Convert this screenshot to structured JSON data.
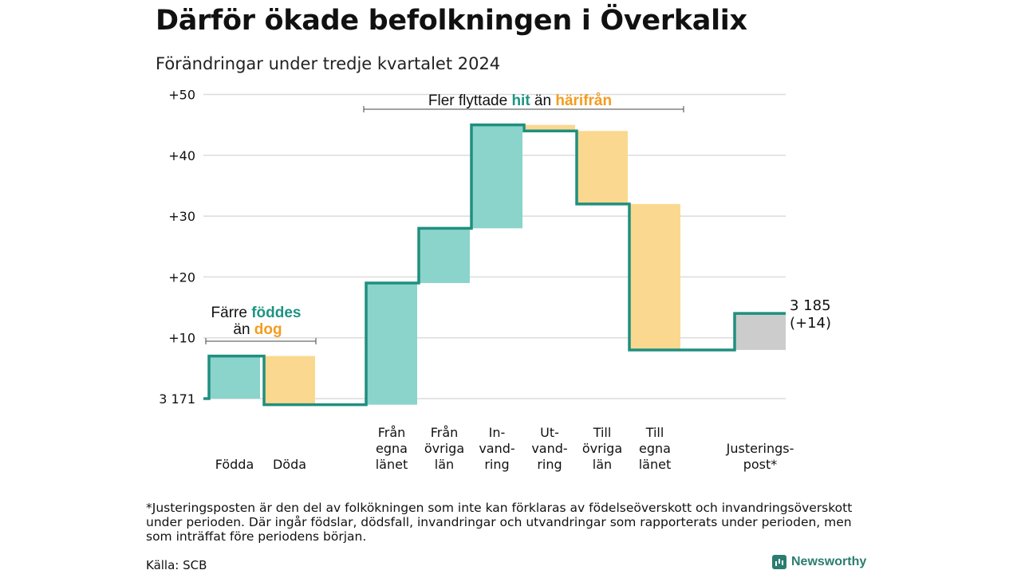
{
  "title": "Därför ökade befolkningen i Överkalix",
  "subtitle": "Förändringar under tredje kvartalet 2024",
  "footnote": "*Justeringsposten är den del av folkökningen som inte kan förklaras av födelseöverskott och invandringsöverskott under perioden. Där ingår födslar, dödsfall, invandringar och utvandringar som rapporterats under perioden, men som inträffat före periodens början.",
  "source": "Källa: SCB",
  "brand": "Newsworthy",
  "colors": {
    "positive": "#8ad4cb",
    "negative": "#fbd88f",
    "adjustment": "#cccccc",
    "line": "#1f8f7f",
    "teal_text": "#1e9482",
    "orange_text": "#f39c1f"
  },
  "annotations": {
    "births": {
      "prefix": "Färre",
      "highlight1": "föddes",
      "mid": "än",
      "highlight2": "dog"
    },
    "migration": {
      "prefix": "Fler flyttade",
      "highlight1": "hit",
      "mid": "än",
      "highlight2": "härifrån"
    },
    "end_label": [
      "3 185",
      "(+14)"
    ]
  },
  "chart_data": {
    "type": "waterfall",
    "title": "Därför ökade befolkningen i Överkalix",
    "subtitle": "Förändringar under tredje kvartalet 2024",
    "base_population": 3171,
    "base_label": "3 171",
    "final_population": 3185,
    "ylim": [
      0,
      50
    ],
    "yticks": [
      10,
      20,
      30,
      40,
      50
    ],
    "ytick_labels": [
      "+10",
      "+20",
      "+30",
      "+40",
      "+50"
    ],
    "grid": true,
    "steps": [
      {
        "label": [
          "Födda"
        ],
        "value": 7,
        "kind": "positive"
      },
      {
        "label": [
          "Döda"
        ],
        "value": -8,
        "kind": "negative"
      },
      {
        "label": [
          "Från",
          "egna",
          "länet"
        ],
        "value": 20,
        "kind": "positive"
      },
      {
        "label": [
          "Från",
          "övriga",
          "län"
        ],
        "value": 9,
        "kind": "positive"
      },
      {
        "label": [
          "In-",
          "vand-",
          "ring"
        ],
        "value": 17,
        "kind": "positive"
      },
      {
        "label": [
          "Ut-",
          "vand-",
          "ring"
        ],
        "value": -1,
        "kind": "negative"
      },
      {
        "label": [
          "Till",
          "övriga",
          "län"
        ],
        "value": -12,
        "kind": "negative"
      },
      {
        "label": [
          "Till",
          "egna",
          "länet"
        ],
        "value": -24,
        "kind": "negative"
      },
      {
        "label": [
          "Justerings-",
          "post*"
        ],
        "value": 6,
        "kind": "adjustment"
      }
    ]
  }
}
